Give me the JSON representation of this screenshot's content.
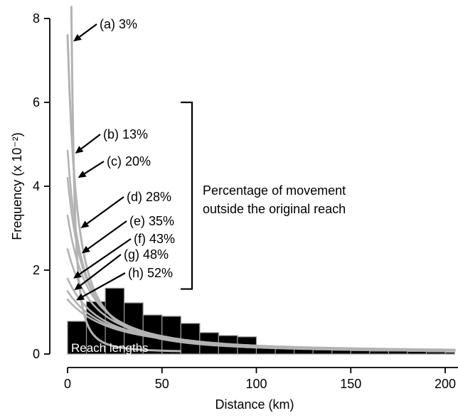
{
  "chart_data": {
    "type": "bar",
    "xlabel": "Distance (km)",
    "ylabel": "Frequency (x 10⁻²)",
    "xlim": [
      0,
      205
    ],
    "ylim": [
      0,
      8.2
    ],
    "x_ticks": [
      0,
      50,
      100,
      150,
      200
    ],
    "x_tick_labels": [
      "0",
      "50",
      "100",
      "150",
      "200"
    ],
    "y_ticks": [
      0,
      2,
      4,
      6,
      8
    ],
    "y_tick_labels": [
      "0",
      "2",
      "4",
      "6",
      "8"
    ],
    "histogram": {
      "label": "Reach lengths",
      "color": "#000000",
      "bins": [
        {
          "x0": 0,
          "x1": 10,
          "value": 0.78
        },
        {
          "x0": 10,
          "x1": 20,
          "value": 1.25
        },
        {
          "x0": 20,
          "x1": 30,
          "value": 1.57
        },
        {
          "x0": 30,
          "x1": 40,
          "value": 1.22
        },
        {
          "x0": 40,
          "x1": 50,
          "value": 0.93
        },
        {
          "x0": 50,
          "x1": 60,
          "value": 0.9
        },
        {
          "x0": 60,
          "x1": 70,
          "value": 0.73
        },
        {
          "x0": 70,
          "x1": 80,
          "value": 0.51
        },
        {
          "x0": 80,
          "x1": 90,
          "value": 0.44
        },
        {
          "x0": 90,
          "x1": 100,
          "value": 0.41
        },
        {
          "x0": 100,
          "x1": 110,
          "value": 0.17
        },
        {
          "x0": 110,
          "x1": 120,
          "value": 0.15
        },
        {
          "x0": 120,
          "x1": 130,
          "value": 0.12
        },
        {
          "x0": 130,
          "x1": 140,
          "value": 0.1
        },
        {
          "x0": 140,
          "x1": 150,
          "value": 0.09
        },
        {
          "x0": 150,
          "x1": 160,
          "value": 0.08
        },
        {
          "x0": 160,
          "x1": 170,
          "value": 0.07
        },
        {
          "x0": 170,
          "x1": 180,
          "value": 0.07
        },
        {
          "x0": 180,
          "x1": 190,
          "value": 0.06
        },
        {
          "x0": 190,
          "x1": 200,
          "value": 0.05
        },
        {
          "x0": 200,
          "x1": 205,
          "value": 0.04
        }
      ]
    },
    "curve_color": "#b3b3b3",
    "series": [
      {
        "label": "(a) 3%",
        "y0": 7.6,
        "x_fall": 8
      },
      {
        "label": "(b) 13%",
        "y0": 4.85,
        "x_fall": 12
      },
      {
        "label": "(c) 20%",
        "y0": 4.2,
        "x_fall": 14
      },
      {
        "label": "(d) 28%",
        "y0": 3.3,
        "x_fall": 18
      },
      {
        "label": "(e) 35%",
        "y0": 2.5,
        "x_fall": 22
      },
      {
        "label": "(f) 43%",
        "y0": 1.8,
        "x_fall": 28
      },
      {
        "label": "(g) 48%",
        "y0": 1.5,
        "x_fall": 33
      },
      {
        "label": "(h) 52%",
        "y0": 1.3,
        "x_fall": 38
      }
    ],
    "bracket": {
      "label_lines": [
        "Percentage of movement",
        "outside the original reach"
      ],
      "y_top": 6.0,
      "y_bottom": 1.55
    }
  }
}
